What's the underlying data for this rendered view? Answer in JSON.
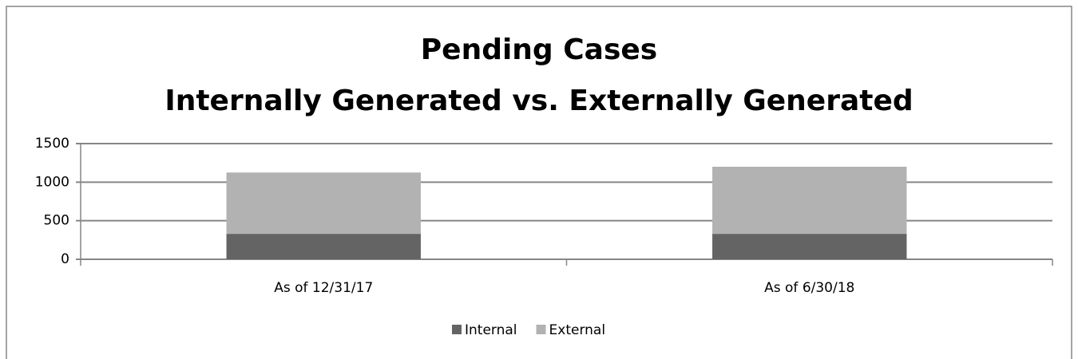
{
  "chart_data": {
    "type": "stacked_bar",
    "title": "Pending Cases",
    "subtitle": "Internally Generated vs. Externally Generated",
    "categories": [
      "As of 12/31/17",
      "As of 6/30/18"
    ],
    "series": [
      {
        "name": "Internal",
        "color": "#646464",
        "values": [
          330,
          330
        ]
      },
      {
        "name": "External",
        "color": "#b2b2b2",
        "values": [
          795,
          870
        ]
      }
    ],
    "ylim": [
      0,
      1500
    ],
    "yticks": [
      0,
      500,
      1000,
      1500
    ],
    "grid": true,
    "legend": "bottom"
  }
}
